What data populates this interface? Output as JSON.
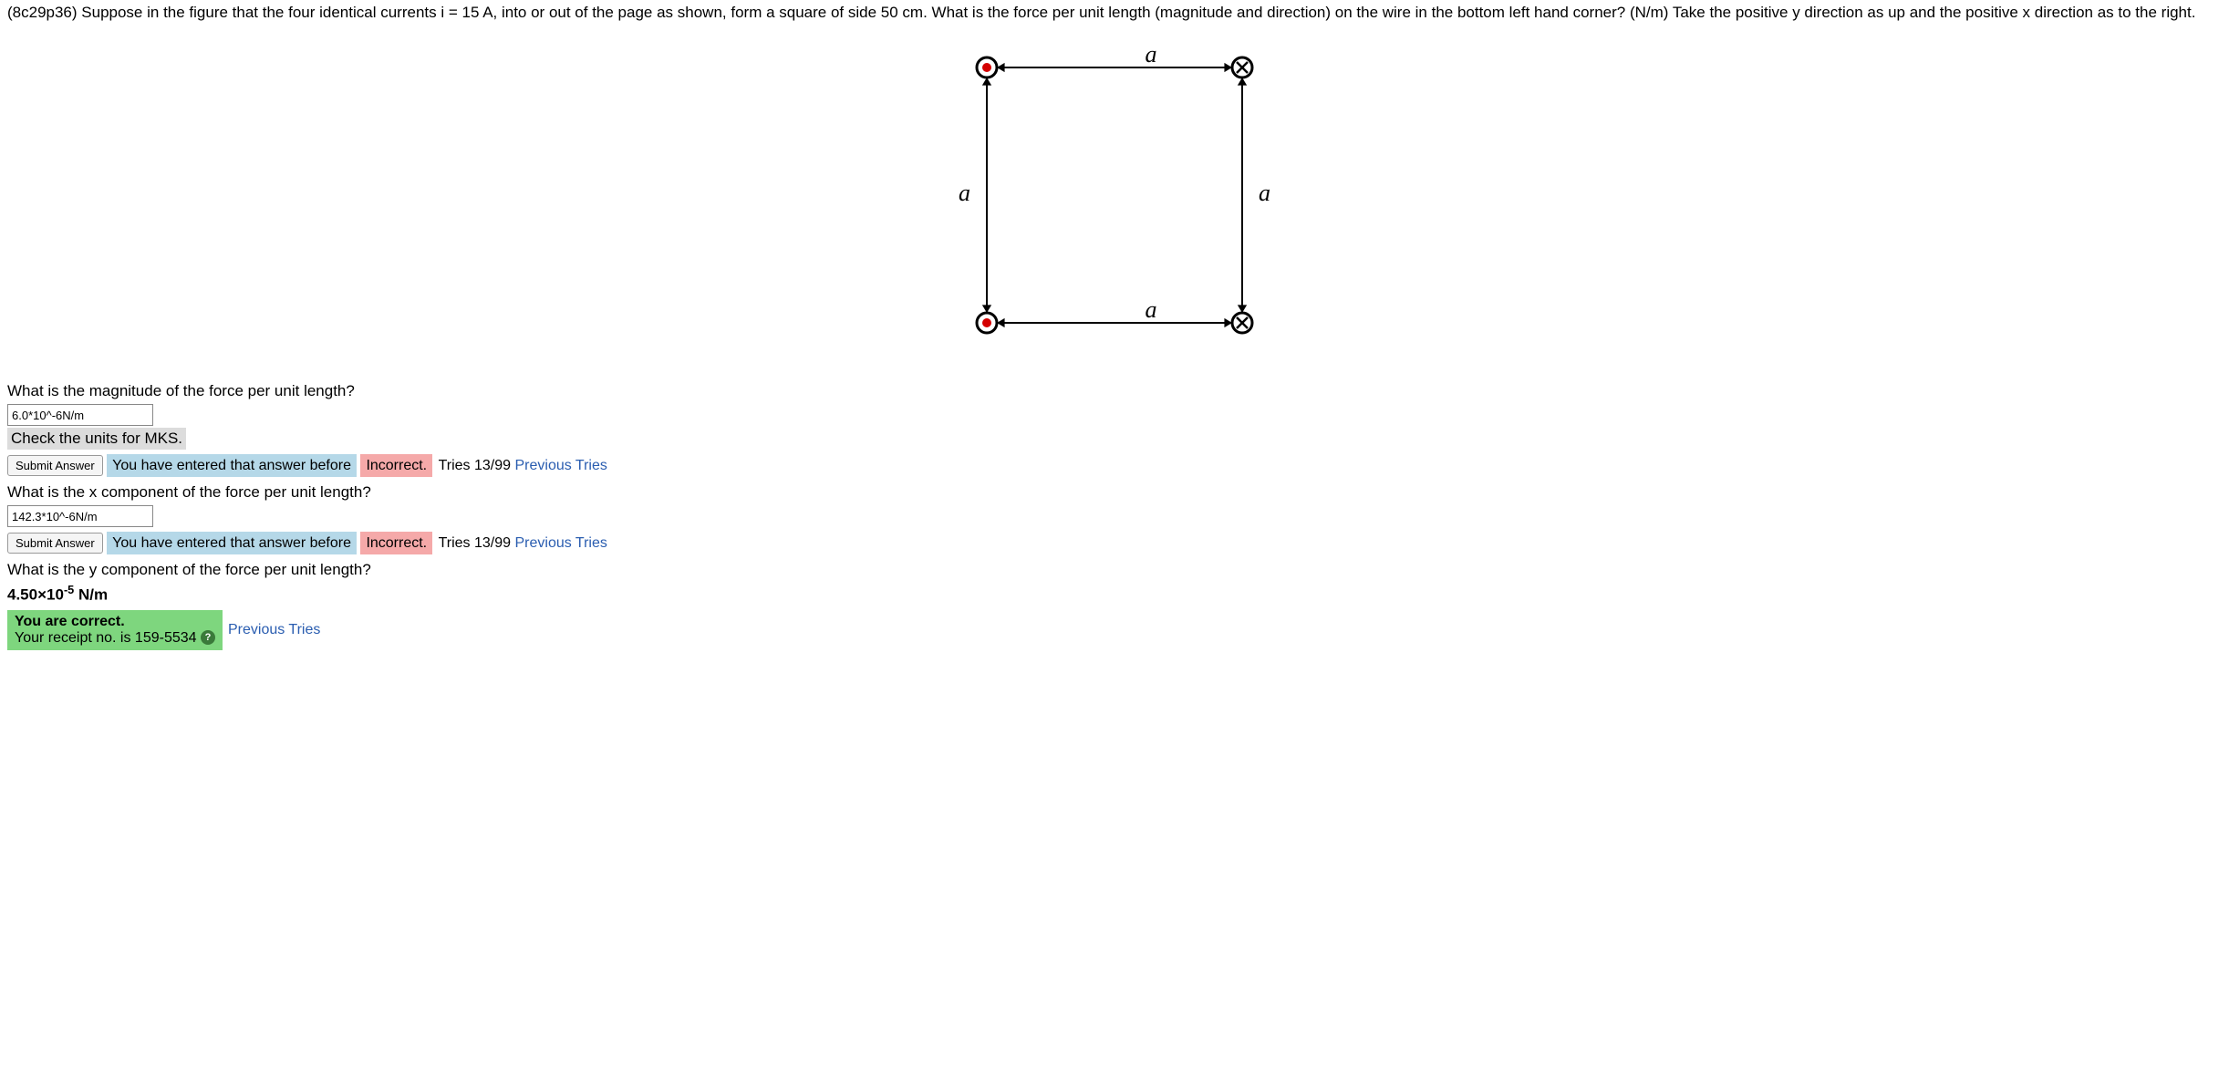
{
  "problem": {
    "text": "(8c29p36) Suppose in the figure that the four identical currents i = 15 A, into or out of the page as shown, form a square of side 50 cm. What is the force per unit length (magnitude and direction) on the wire in the bottom left hand corner? (N/m) Take the positive y direction as up and the positive x direction as to the right."
  },
  "figure": {
    "side_label": "a",
    "node_colors": {
      "out": "#d40000",
      "in": "#000000"
    },
    "stroke": "#000000",
    "size": 280,
    "node_radius": 11,
    "inner_radius": 5,
    "arrow_len": 10
  },
  "q1": {
    "prompt": "What is the magnitude of the force per unit length?",
    "input_value": "6.0*10^-6N/m",
    "feedback_units": "Check the units for MKS.",
    "submit_label": "Submit Answer",
    "entered_before": "You have entered that answer before",
    "incorrect": "Incorrect.",
    "tries_prefix": "Tries 13/99",
    "previous_tries": "Previous Tries"
  },
  "q2": {
    "prompt": "What is the x component of the force per unit length?",
    "input_value": "142.3*10^-6N/m",
    "submit_label": "Submit Answer",
    "entered_before": "You have entered that answer before",
    "incorrect": "Incorrect.",
    "tries_prefix": "Tries 13/99",
    "previous_tries": "Previous Tries"
  },
  "q3": {
    "prompt": "What is the y component of the force per unit length?",
    "answer_html": "4.50×10<sup>-5</sup> N/m",
    "correct_line1": "You are correct.",
    "correct_line2": "Your receipt no. is 159-5534",
    "help_glyph": "?",
    "previous_tries": "Previous Tries"
  }
}
